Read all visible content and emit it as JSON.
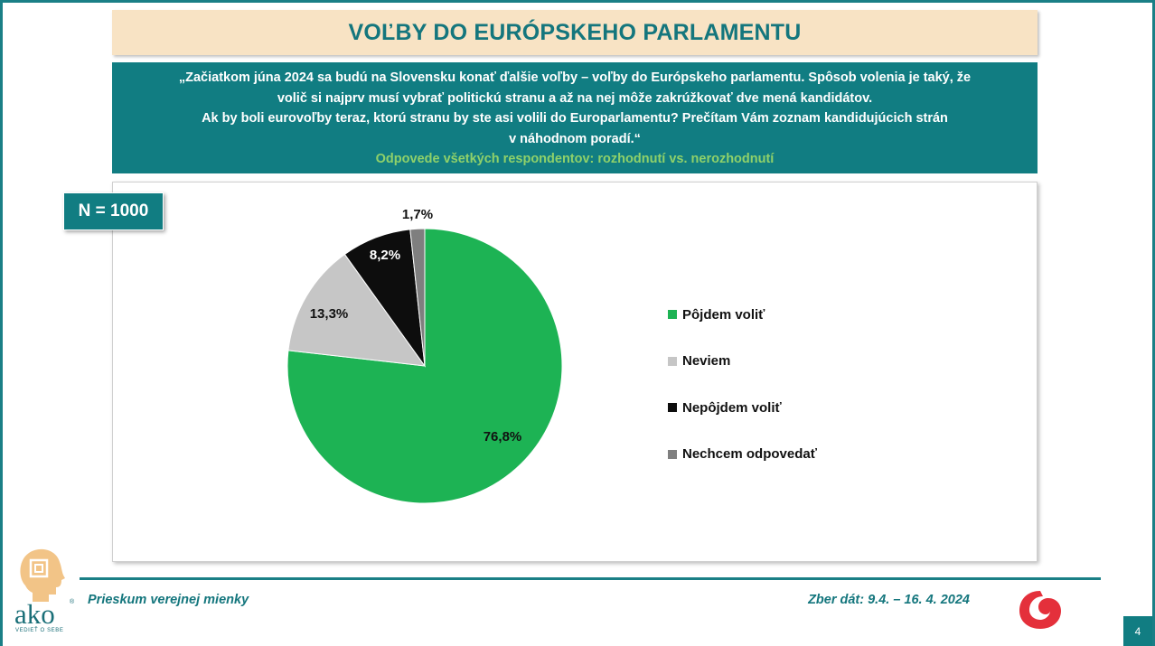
{
  "title": "VOĽBY DO EURÓPSKEHO PARLAMENTU",
  "question_lines": [
    "„Začiatkom júna 2024 sa budú na Slovensku konať ďalšie voľby – voľby do Európskeho parlamentu. Spôsob volenia je taký, že",
    "volič si najprv musí vybrať politickú stranu a až na nej môže zakrúžkovať dve mená kandidátov.",
    "Ak by boli eurovoľby teraz, ktorú stranu by ste asi volili do Europarlamentu? Prečítam Vám zoznam kandidujúcich strán",
    "v náhodnom poradí.“"
  ],
  "subtitle": "Odpovede všetkých respondentov: rozhodnutí vs. nerozhodnutí",
  "sample": "N = 1000",
  "chart_data": {
    "type": "pie",
    "title": "",
    "legend_position": "right",
    "slices": [
      {
        "label": "Pôjdem voliť",
        "value": 76.8,
        "value_label": "76,8%",
        "color": "#1db354"
      },
      {
        "label": "Neviem",
        "value": 13.3,
        "value_label": "13,3%",
        "color": "#c6c6c6"
      },
      {
        "label": "Nepôjdem voliť",
        "value": 8.2,
        "value_label": "8,2%",
        "color": "#0d0d0d"
      },
      {
        "label": "Nechcem odpovedať",
        "value": 1.7,
        "value_label": "1,7%",
        "color": "#7f7f7f"
      }
    ]
  },
  "footer": {
    "left": "Prieskum verejnej mienky",
    "right": "Zber dát: 9.4. – 16. 4. 2024",
    "page": "4"
  },
  "logo": {
    "text": "ako",
    "tagline": "VEDIEŤ O SEBE",
    "registered": "®"
  },
  "colors": {
    "teal": "#117d82",
    "title_bg": "#f8e3c4",
    "subtitle": "#8fd16a"
  }
}
